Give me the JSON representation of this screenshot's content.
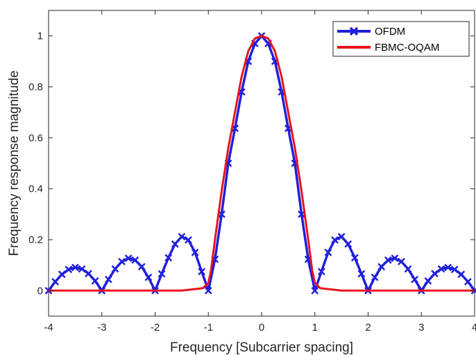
{
  "chart_data": {
    "type": "line",
    "xlabel": "Frequency [Subcarrier spacing]",
    "ylabel": "Frequency response magnitude",
    "xlim": [
      -4,
      4
    ],
    "ylim": [
      -0.1,
      1.1
    ],
    "x_ticks": [
      -4,
      -3,
      -2,
      -1,
      0,
      1,
      2,
      3,
      4
    ],
    "x_tick_labels": [
      "-4",
      "-3",
      "-2",
      "-1",
      "0",
      "1",
      "2",
      "3",
      "4"
    ],
    "y_ticks": [
      0,
      0.2,
      0.4,
      0.6,
      0.8,
      1
    ],
    "y_tick_labels": [
      "0",
      "0.2",
      "0.4",
      "0.6",
      "0.8",
      "1"
    ],
    "grid": false,
    "legend_position": "top-right",
    "series": [
      {
        "name": "OFDM",
        "color": "#1f1fdc",
        "marker": "x",
        "x": [
          -4,
          -3.875,
          -3.75,
          -3.625,
          -3.5,
          -3.375,
          -3.25,
          -3.125,
          -3,
          -2.875,
          -2.75,
          -2.625,
          -2.5,
          -2.375,
          -2.25,
          -2.125,
          -2,
          -1.875,
          -1.75,
          -1.625,
          -1.5,
          -1.375,
          -1.25,
          -1.125,
          -1,
          -0.875,
          -0.75,
          -0.625,
          -0.5,
          -0.375,
          -0.25,
          -0.125,
          0,
          0.125,
          0.25,
          0.375,
          0.5,
          0.625,
          0.75,
          0.875,
          1,
          1.125,
          1.25,
          1.375,
          1.5,
          1.625,
          1.75,
          1.875,
          2,
          2.125,
          2.25,
          2.375,
          2.5,
          2.625,
          2.75,
          2.875,
          3,
          3.125,
          3.25,
          3.375,
          3.5,
          3.625,
          3.75,
          3.875,
          4
        ],
        "y": [
          0.0,
          0.035,
          0.064,
          0.083,
          0.091,
          0.085,
          0.067,
          0.038,
          0.0,
          0.044,
          0.085,
          0.114,
          0.127,
          0.12,
          0.094,
          0.052,
          0.0,
          0.066,
          0.129,
          0.183,
          0.212,
          0.199,
          0.15,
          0.075,
          0.0,
          0.123,
          0.3,
          0.5,
          0.637,
          0.78,
          0.9,
          0.97,
          1.0,
          0.97,
          0.9,
          0.78,
          0.637,
          0.5,
          0.3,
          0.123,
          0.0,
          0.075,
          0.15,
          0.199,
          0.212,
          0.183,
          0.129,
          0.066,
          0.0,
          0.052,
          0.094,
          0.12,
          0.127,
          0.114,
          0.085,
          0.044,
          0.0,
          0.038,
          0.067,
          0.085,
          0.091,
          0.083,
          0.064,
          0.035,
          0.0
        ]
      },
      {
        "name": "FBMC-OQAM",
        "color": "#e8141c",
        "marker": "none",
        "x": [
          -4,
          -3,
          -2,
          -1.5,
          -1.25,
          -1.1,
          -1.05,
          -1.0,
          -0.95,
          -0.875,
          -0.75,
          -0.625,
          -0.5,
          -0.375,
          -0.25,
          -0.125,
          0,
          0.125,
          0.25,
          0.375,
          0.5,
          0.625,
          0.75,
          0.875,
          0.95,
          1.0,
          1.05,
          1.1,
          1.25,
          1.5,
          2,
          3,
          4
        ],
        "y": [
          0.0,
          0.0,
          0.0,
          0.0,
          0.006,
          0.01,
          0.02,
          0.03,
          0.08,
          0.2,
          0.39,
          0.56,
          0.7,
          0.84,
          0.94,
          0.99,
          1.0,
          0.99,
          0.94,
          0.84,
          0.7,
          0.56,
          0.39,
          0.2,
          0.08,
          0.03,
          0.02,
          0.01,
          0.006,
          0.0,
          0.0,
          0.0,
          0.0
        ]
      }
    ]
  }
}
